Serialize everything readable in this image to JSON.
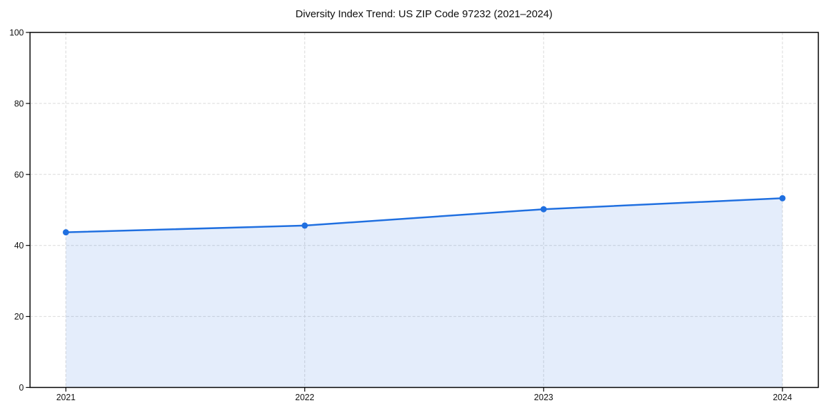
{
  "window": {
    "background": "#ffffff"
  },
  "chart_data": {
    "type": "line",
    "title": "Diversity Index Trend: US ZIP Code 97232 (2021–2024)",
    "categories": [
      "2021",
      "2022",
      "2023",
      "2024"
    ],
    "series": [
      {
        "name": "Diversity Index",
        "values": [
          43.7,
          45.6,
          50.2,
          53.3
        ]
      }
    ],
    "xlabel": "",
    "ylabel": "",
    "ylim": [
      0,
      100
    ],
    "yticks": [
      0,
      20,
      40,
      60,
      80,
      100
    ],
    "area_fill": true,
    "markers": true,
    "grid": {
      "horizontal": true,
      "vertical": true,
      "style": "dashed"
    },
    "legend": "none",
    "colors": {
      "line": "#1f6fe0",
      "marker": "#1f6fe0",
      "area": "rgba(31, 111, 224, 0.12)",
      "gridline": "#d9d9d9",
      "axis": "#000000",
      "tick_text": "#111111",
      "background": "#ffffff"
    }
  }
}
